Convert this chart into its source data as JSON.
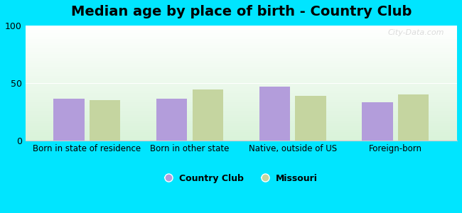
{
  "title": "Median age by place of birth - Country Club",
  "categories": [
    "Born in state of residence",
    "Born in other state",
    "Native, outside of US",
    "Foreign-born"
  ],
  "country_club_values": [
    36,
    36,
    47,
    33
  ],
  "missouri_values": [
    35,
    44,
    39,
    40
  ],
  "bar_color_cc": "#b39ddb",
  "bar_color_mo": "#c5d5a0",
  "ylim": [
    0,
    100
  ],
  "yticks": [
    0,
    50,
    100
  ],
  "background_color": "#00e5ff",
  "legend_cc": "Country Club",
  "legend_mo": "Missouri",
  "title_fontsize": 14,
  "label_fontsize": 9,
  "watermark": "City-Data.com"
}
